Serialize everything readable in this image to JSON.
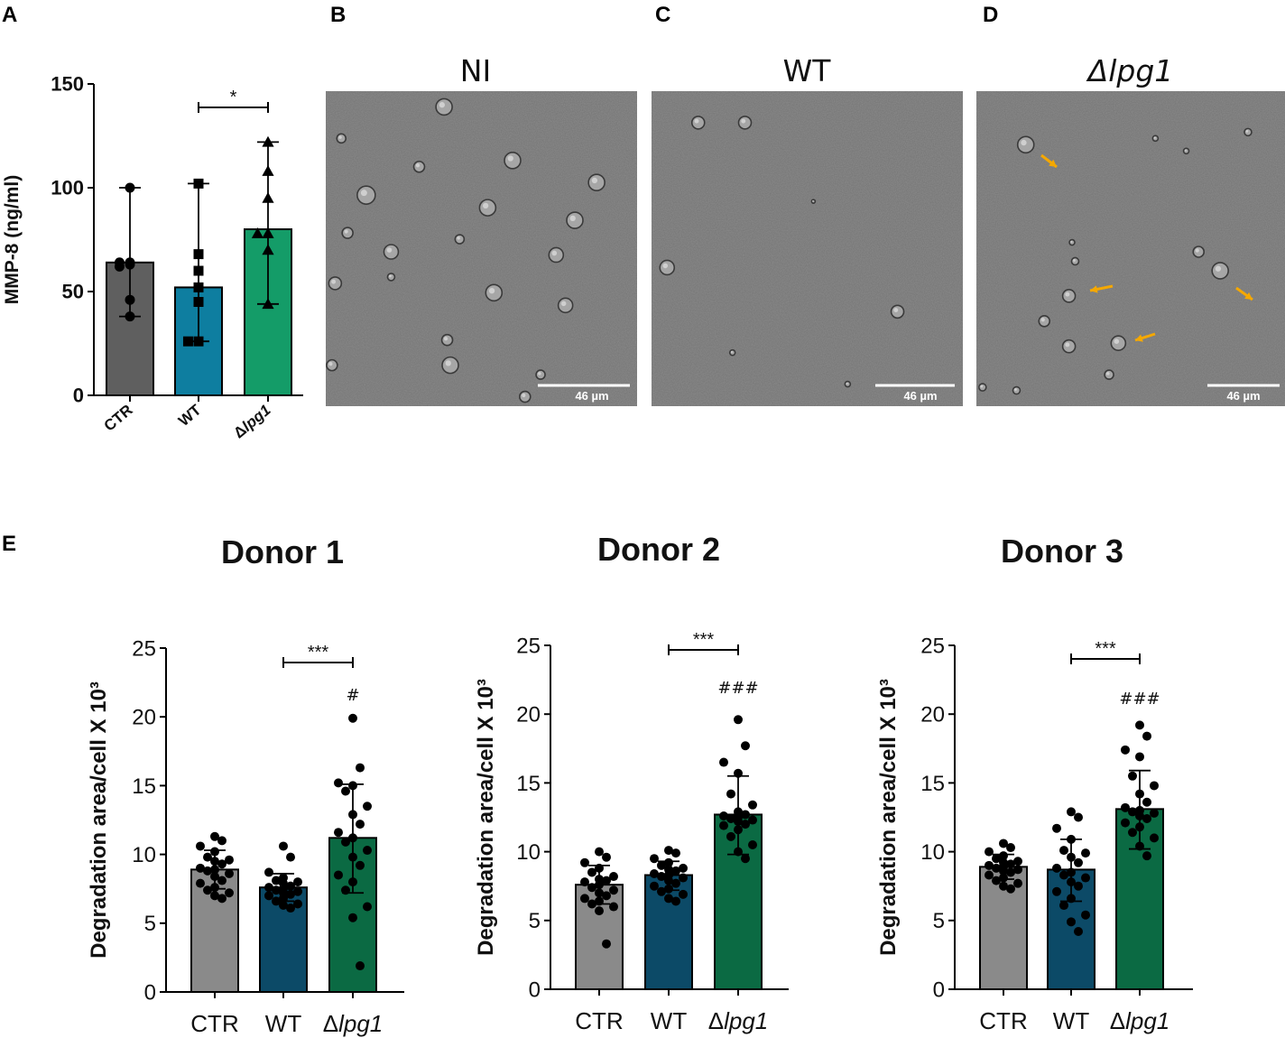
{
  "panel_letters": [
    "A",
    "B",
    "C",
    "D",
    "E"
  ],
  "micrographs": [
    {
      "letter": "B",
      "title": "NI",
      "scale_bar": "46 µm",
      "italic": false
    },
    {
      "letter": "C",
      "title": "WT",
      "scale_bar": "46 µm",
      "italic": false
    },
    {
      "letter": "D",
      "title": "Δlpg1",
      "scale_bar": "46 µm",
      "italic": true,
      "arrows": 4
    }
  ],
  "colors": {
    "ctr_a": "#5f5f5f",
    "wt_a": "#0e7ea0",
    "dlpg1_a": "#149c68",
    "ctr_e": "#8a8a8a",
    "wt_e": "#0c4a67",
    "dlpg1_e": "#0b6a43",
    "arrow": "#f5a800",
    "micro_bg": "#8c8c8c"
  },
  "chart_data": [
    {
      "type": "bar",
      "panel": "A",
      "title": "",
      "ylabel": "MMP-8 (ng/ml)",
      "xlabel": "",
      "ylim": [
        0,
        150
      ],
      "yticks": [
        "0",
        "50",
        "100",
        "150"
      ],
      "categories": [
        "CTR",
        "WT",
        "Δlpg1"
      ],
      "values": [
        64,
        52,
        80
      ],
      "error_bars": [
        [
          38,
          100
        ],
        [
          26,
          102
        ],
        [
          44,
          122
        ]
      ],
      "points": [
        [
          100,
          64,
          64,
          63,
          62,
          46,
          38
        ],
        [
          102,
          68,
          60,
          52,
          45,
          26,
          26
        ],
        [
          122,
          108,
          95,
          78,
          78,
          70,
          44
        ]
      ],
      "markers": [
        "circle",
        "square",
        "triangle"
      ],
      "significance": {
        "between": [
          "WT",
          "Δlpg1"
        ],
        "label": "*"
      }
    },
    {
      "type": "bar",
      "panel": "E",
      "title": "Donor 1",
      "ylabel": "Degradation area/cell X 10³",
      "xlabel": "",
      "ylim": [
        0,
        25
      ],
      "yticks": [
        "0",
        "5",
        "10",
        "15",
        "20",
        "25"
      ],
      "categories": [
        "CTR",
        "WT",
        "Δlpg1"
      ],
      "values": [
        8.9,
        7.6,
        11.2
      ],
      "error_bars": [
        [
          7.5,
          10.3
        ],
        [
          6.6,
          8.6
        ],
        [
          7.2,
          15.1
        ]
      ],
      "points": [
        [
          11.3,
          11.0,
          10.6,
          10.2,
          9.8,
          9.5,
          9.3,
          9.0,
          8.8,
          8.6,
          8.4,
          8.1,
          7.9,
          7.6,
          7.4,
          7.2,
          7.0,
          6.8,
          8.9,
          9.6
        ],
        [
          10.6,
          9.8,
          8.7,
          8.3,
          8.0,
          7.9,
          7.7,
          7.5,
          7.4,
          7.3,
          7.1,
          7.0,
          6.8,
          6.6,
          6.4,
          6.3,
          6.1,
          7.6,
          7.2,
          8.1
        ],
        [
          19.9,
          16.3,
          15.2,
          15.0,
          14.6,
          13.5,
          12.9,
          12.2,
          11.6,
          11.2,
          10.9,
          10.3,
          9.8,
          9.2,
          8.5,
          8.0,
          7.4,
          6.2,
          5.4,
          1.9
        ]
      ],
      "significance": {
        "between": [
          "WT",
          "Δlpg1"
        ],
        "label": "***"
      },
      "annotation": "#"
    },
    {
      "type": "bar",
      "panel": "E",
      "title": "Donor 2",
      "ylabel": "Degradation area/cell X 10³",
      "xlabel": "",
      "ylim": [
        0,
        25
      ],
      "yticks": [
        "0",
        "5",
        "10",
        "15",
        "20",
        "25"
      ],
      "categories": [
        "CTR",
        "WT",
        "Δlpg1"
      ],
      "values": [
        7.6,
        8.3,
        12.7
      ],
      "error_bars": [
        [
          6.2,
          9.0
        ],
        [
          7.2,
          9.3
        ],
        [
          9.8,
          15.5
        ]
      ],
      "points": [
        [
          10.0,
          9.6,
          9.2,
          8.8,
          8.5,
          8.2,
          8.0,
          7.8,
          7.6,
          7.4,
          7.2,
          7.0,
          6.8,
          6.6,
          6.4,
          6.2,
          6.0,
          5.7,
          3.3,
          7.9
        ],
        [
          10.1,
          9.9,
          9.5,
          9.2,
          9.0,
          8.8,
          8.6,
          8.4,
          8.3,
          8.1,
          7.9,
          7.7,
          7.5,
          7.3,
          7.1,
          6.9,
          6.6,
          6.4,
          8.2,
          8.7
        ],
        [
          19.6,
          17.7,
          16.5,
          15.7,
          14.2,
          13.4,
          12.9,
          12.7,
          12.6,
          12.5,
          12.4,
          12.3,
          12.2,
          11.9,
          11.6,
          11.1,
          10.5,
          10.0,
          9.5,
          12.0
        ]
      ],
      "significance": {
        "between": [
          "WT",
          "Δlpg1"
        ],
        "label": "***"
      },
      "annotation": "###"
    },
    {
      "type": "bar",
      "panel": "E",
      "title": "Donor 3",
      "ylabel": "Degradation area/cell X 10³",
      "xlabel": "",
      "ylim": [
        0,
        25
      ],
      "yticks": [
        "0",
        "5",
        "10",
        "15",
        "20",
        "25"
      ],
      "categories": [
        "CTR",
        "WT",
        "Δlpg1"
      ],
      "values": [
        8.9,
        8.7,
        13.1
      ],
      "error_bars": [
        [
          8.0,
          9.8
        ],
        [
          6.4,
          10.9
        ],
        [
          10.2,
          15.9
        ]
      ],
      "points": [
        [
          10.6,
          10.3,
          10.0,
          9.7,
          9.5,
          9.3,
          9.1,
          8.9,
          8.7,
          8.6,
          8.5,
          8.3,
          8.1,
          7.9,
          7.7,
          7.5,
          7.3,
          9.0,
          8.8,
          9.2
        ],
        [
          12.9,
          12.5,
          11.7,
          10.9,
          10.1,
          9.6,
          9.2,
          8.8,
          8.5,
          8.1,
          7.8,
          7.5,
          7.1,
          6.6,
          6.1,
          5.4,
          4.9,
          4.2,
          9.9,
          8.3
        ],
        [
          19.2,
          18.4,
          17.4,
          16.9,
          14.8,
          14.2,
          13.6,
          13.2,
          13.0,
          12.8,
          12.6,
          12.4,
          12.1,
          11.8,
          11.4,
          11.0,
          10.4,
          9.7,
          15.5,
          12.9
        ]
      ],
      "significance": {
        "between": [
          "WT",
          "Δlpg1"
        ],
        "label": "***"
      },
      "annotation": "###"
    }
  ]
}
